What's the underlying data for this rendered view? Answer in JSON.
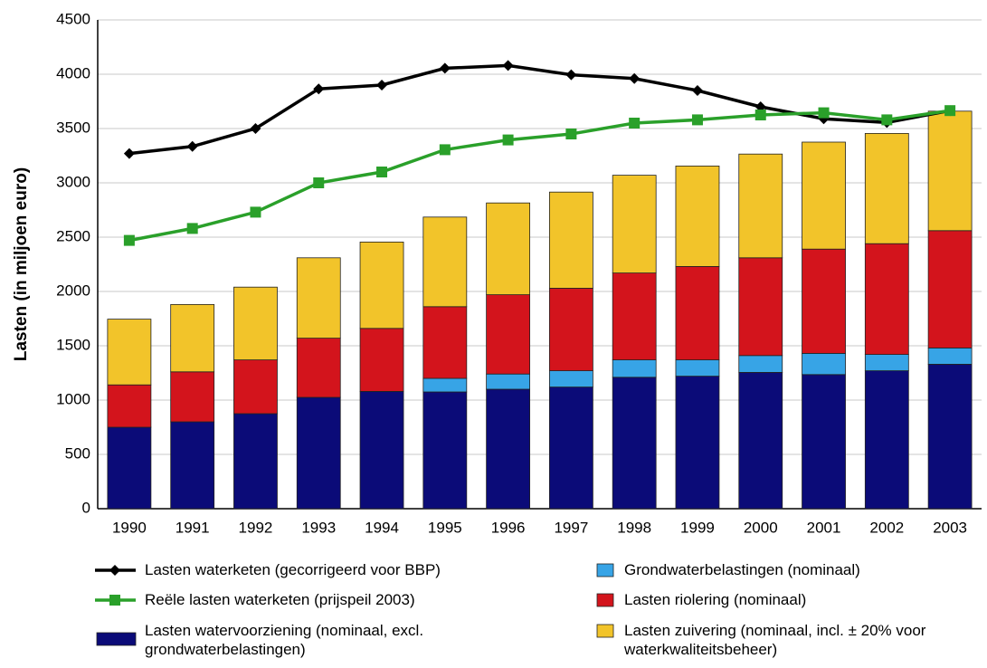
{
  "chart_data": {
    "type": "bar",
    "stacked": true,
    "y_label": "Lasten (in miljoen euro)",
    "categories": [
      "1990",
      "1991",
      "1992",
      "1993",
      "1994",
      "1995",
      "1996",
      "1997",
      "1998",
      "1999",
      "2000",
      "2001",
      "2002",
      "2003"
    ],
    "ylim": [
      0,
      4500
    ],
    "yticks": [
      0,
      500,
      1000,
      1500,
      2000,
      2500,
      3000,
      3500,
      4000,
      4500
    ],
    "grid": true,
    "series": [
      {
        "name": "Lasten watervoorziening (nominaal, excl. grondwaterbelastingen)",
        "type": "bar",
        "color": "#0b0b78",
        "values": [
          750,
          800,
          875,
          1025,
          1080,
          1075,
          1100,
          1120,
          1210,
          1220,
          1255,
          1235,
          1270,
          1330
        ]
      },
      {
        "name": "Grondwaterbelastingen (nominaal)",
        "type": "bar",
        "color": "#37a4e6",
        "values": [
          0,
          0,
          0,
          0,
          0,
          125,
          140,
          150,
          160,
          150,
          155,
          195,
          150,
          150
        ]
      },
      {
        "name": "Lasten riolering (nominaal)",
        "type": "bar",
        "color": "#d3141c",
        "values": [
          390,
          460,
          495,
          545,
          580,
          660,
          730,
          760,
          800,
          860,
          900,
          960,
          1020,
          1080
        ]
      },
      {
        "name": "Lasten zuivering (nominaal, incl. ± 20% voor waterkwaliteitsbeheer)",
        "type": "bar",
        "color": "#f2c42a",
        "values": [
          605,
          620,
          670,
          740,
          795,
          825,
          845,
          885,
          900,
          925,
          955,
          985,
          1015,
          1100
        ]
      },
      {
        "name": "Lasten waterketen (gecorrigeerd voor BBP)",
        "type": "line",
        "marker": "diamond",
        "color": "#000000",
        "values": [
          3270,
          3335,
          3500,
          3865,
          3900,
          4055,
          4080,
          3995,
          3960,
          3850,
          3700,
          3590,
          3555,
          3665
        ]
      },
      {
        "name": "Reële lasten waterketen (prijspeil 2003)",
        "type": "line",
        "marker": "square",
        "color": "#2aa02a",
        "values": [
          2470,
          2580,
          2730,
          3000,
          3100,
          3305,
          3395,
          3450,
          3550,
          3580,
          3625,
          3645,
          3580,
          3665
        ]
      }
    ]
  }
}
